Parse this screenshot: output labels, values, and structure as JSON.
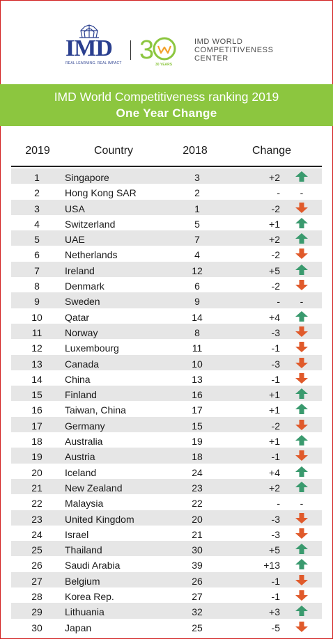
{
  "header": {
    "logo_text": "IMD",
    "logo_tagline": "REAL LEARNING. REAL IMPACT",
    "anniversary_text": "30 YEARS",
    "center_name_lines": [
      "IMD WORLD",
      "COMPETITIVENESS",
      "CENTER"
    ]
  },
  "banner": {
    "title": "IMD World Competitiveness ranking 2019",
    "subtitle": "One Year Change",
    "color": "#8cc63f"
  },
  "colors": {
    "up": "#3a9a6e",
    "down": "#e05a2b",
    "row_shade": "#e6e6e6"
  },
  "chart_data": {
    "type": "table",
    "columns": [
      "2019",
      "Country",
      "2018",
      "Change"
    ],
    "rows": [
      {
        "rank_2019": "1",
        "country": "Singapore",
        "rank_2018": "3",
        "change": "+2",
        "direction": "up"
      },
      {
        "rank_2019": "2",
        "country": "Hong Kong SAR",
        "rank_2018": "2",
        "change": "-",
        "direction": "none"
      },
      {
        "rank_2019": "3",
        "country": "USA",
        "rank_2018": "1",
        "change": "-2",
        "direction": "down"
      },
      {
        "rank_2019": "4",
        "country": "Switzerland",
        "rank_2018": "5",
        "change": "+1",
        "direction": "up"
      },
      {
        "rank_2019": "5",
        "country": "UAE",
        "rank_2018": "7",
        "change": "+2",
        "direction": "up"
      },
      {
        "rank_2019": "6",
        "country": "Netherlands",
        "rank_2018": "4",
        "change": "-2",
        "direction": "down"
      },
      {
        "rank_2019": "7",
        "country": "Ireland",
        "rank_2018": "12",
        "change": "+5",
        "direction": "up"
      },
      {
        "rank_2019": "8",
        "country": "Denmark",
        "rank_2018": "6",
        "change": "-2",
        "direction": "down"
      },
      {
        "rank_2019": "9",
        "country": "Sweden",
        "rank_2018": "9",
        "change": "-",
        "direction": "none"
      },
      {
        "rank_2019": "10",
        "country": "Qatar",
        "rank_2018": "14",
        "change": "+4",
        "direction": "up"
      },
      {
        "rank_2019": "11",
        "country": "Norway",
        "rank_2018": "8",
        "change": "-3",
        "direction": "down"
      },
      {
        "rank_2019": "12",
        "country": "Luxembourg",
        "rank_2018": "11",
        "change": "-1",
        "direction": "down"
      },
      {
        "rank_2019": "13",
        "country": "Canada",
        "rank_2018": "10",
        "change": "-3",
        "direction": "down"
      },
      {
        "rank_2019": "14",
        "country": "China",
        "rank_2018": "13",
        "change": "-1",
        "direction": "down"
      },
      {
        "rank_2019": "15",
        "country": "Finland",
        "rank_2018": "16",
        "change": "+1",
        "direction": "up"
      },
      {
        "rank_2019": "16",
        "country": "Taiwan, China",
        "rank_2018": "17",
        "change": "+1",
        "direction": "up"
      },
      {
        "rank_2019": "17",
        "country": "Germany",
        "rank_2018": "15",
        "change": "-2",
        "direction": "down"
      },
      {
        "rank_2019": "18",
        "country": "Australia",
        "rank_2018": "19",
        "change": "+1",
        "direction": "up"
      },
      {
        "rank_2019": "19",
        "country": "Austria",
        "rank_2018": "18",
        "change": "-1",
        "direction": "down"
      },
      {
        "rank_2019": "20",
        "country": "Iceland",
        "rank_2018": "24",
        "change": "+4",
        "direction": "up"
      },
      {
        "rank_2019": "21",
        "country": "New Zealand",
        "rank_2018": "23",
        "change": "+2",
        "direction": "up"
      },
      {
        "rank_2019": "22",
        "country": "Malaysia",
        "rank_2018": "22",
        "change": "-",
        "direction": "none"
      },
      {
        "rank_2019": "23",
        "country": "United Kingdom",
        "rank_2018": "20",
        "change": "-3",
        "direction": "down"
      },
      {
        "rank_2019": "24",
        "country": "Israel",
        "rank_2018": "21",
        "change": "-3",
        "direction": "down"
      },
      {
        "rank_2019": "25",
        "country": "Thailand",
        "rank_2018": "30",
        "change": "+5",
        "direction": "up"
      },
      {
        "rank_2019": "26",
        "country": "Saudi Arabia",
        "rank_2018": "39",
        "change": "+13",
        "direction": "up"
      },
      {
        "rank_2019": "27",
        "country": "Belgium",
        "rank_2018": "26",
        "change": "-1",
        "direction": "down"
      },
      {
        "rank_2019": "28",
        "country": "Korea Rep.",
        "rank_2018": "27",
        "change": "-1",
        "direction": "down"
      },
      {
        "rank_2019": "29",
        "country": "Lithuania",
        "rank_2018": "32",
        "change": "+3",
        "direction": "up"
      },
      {
        "rank_2019": "30",
        "country": "Japan",
        "rank_2018": "25",
        "change": "-5",
        "direction": "down"
      }
    ]
  }
}
